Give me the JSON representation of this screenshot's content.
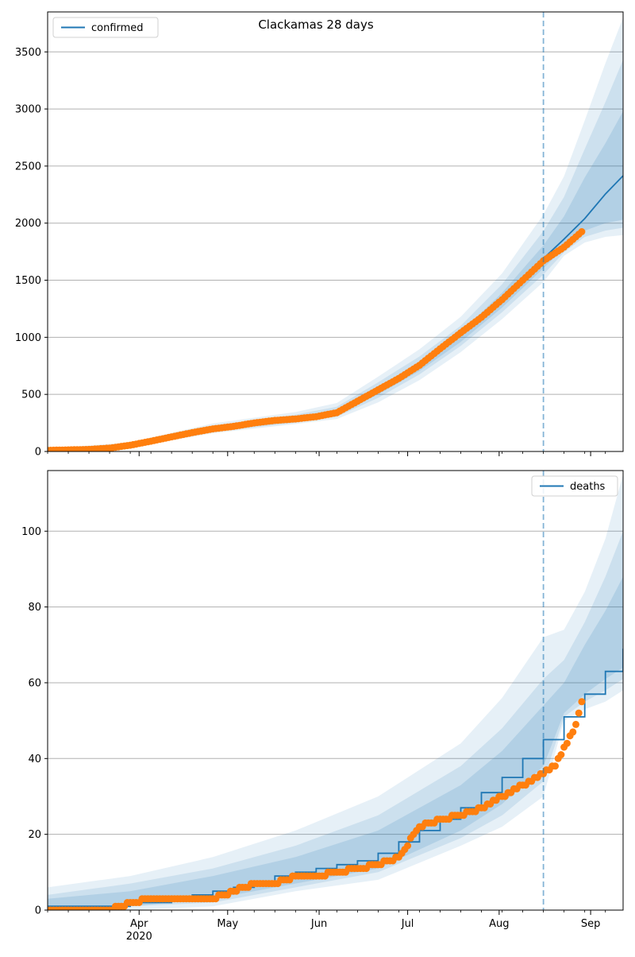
{
  "figure": {
    "title": "Clackamas 28 days",
    "x_tick_labels": [
      "Apr",
      "May",
      "Jun",
      "Jul",
      "Aug",
      "Sep"
    ],
    "x_year_label": "2020"
  },
  "colors": {
    "model_line": "#1f77b4",
    "observed_points": "#ff7f0e",
    "bands": "#1f77b4",
    "forecast_marker": "#1f77b4",
    "grid": "#b0b0b0"
  },
  "chart_data": [
    {
      "type": "line",
      "legend": [
        "confirmed"
      ],
      "legend_position": "top-left",
      "grid": "horizontal",
      "x_start": "2020-03-01",
      "x_end": "2020-09-12",
      "forecast_start": "2020-08-16",
      "ylim": [
        0,
        3850
      ],
      "yticks": [
        0,
        500,
        1000,
        1500,
        2000,
        2500,
        3000,
        3500
      ],
      "series": [
        {
          "name": "confirmed",
          "style": "line",
          "x": [
            "2020-03-01",
            "2020-03-15",
            "2020-03-22",
            "2020-03-29",
            "2020-04-05",
            "2020-04-12",
            "2020-04-19",
            "2020-04-26",
            "2020-05-03",
            "2020-05-10",
            "2020-05-17",
            "2020-05-24",
            "2020-05-31",
            "2020-06-07",
            "2020-06-14",
            "2020-06-21",
            "2020-06-28",
            "2020-07-05",
            "2020-07-12",
            "2020-07-19",
            "2020-07-26",
            "2020-08-02",
            "2020-08-09",
            "2020-08-16",
            "2020-08-23",
            "2020-08-30",
            "2020-09-06",
            "2020-09-12"
          ],
          "y": [
            10,
            18,
            30,
            55,
            90,
            125,
            160,
            195,
            220,
            248,
            268,
            283,
            305,
            345,
            420,
            530,
            630,
            740,
            880,
            1015,
            1160,
            1320,
            1495,
            1690,
            1860,
            2040,
            2255,
            2415
          ]
        }
      ],
      "observed": {
        "x": [
          "2020-03-01",
          "2020-03-15",
          "2020-03-22",
          "2020-03-29",
          "2020-04-05",
          "2020-04-12",
          "2020-04-19",
          "2020-04-26",
          "2020-05-03",
          "2020-05-10",
          "2020-05-17",
          "2020-05-24",
          "2020-05-31",
          "2020-06-07",
          "2020-06-14",
          "2020-06-21",
          "2020-06-28",
          "2020-07-05",
          "2020-07-12",
          "2020-07-19",
          "2020-07-26",
          "2020-08-02",
          "2020-08-09",
          "2020-08-16",
          "2020-08-23",
          "2020-08-29"
        ],
        "y": [
          10,
          18,
          30,
          55,
          90,
          128,
          165,
          198,
          220,
          250,
          272,
          285,
          305,
          340,
          440,
          540,
          640,
          755,
          900,
          1040,
          1175,
          1330,
          1500,
          1670,
          1790,
          1925
        ]
      },
      "bands": {
        "x": [
          "2020-03-01",
          "2020-03-29",
          "2020-04-26",
          "2020-05-24",
          "2020-06-07",
          "2020-06-21",
          "2020-07-05",
          "2020-07-19",
          "2020-08-02",
          "2020-08-16",
          "2020-08-23",
          "2020-08-30",
          "2020-09-06",
          "2020-09-12"
        ],
        "levels": [
          {
            "lower": [
              0,
              35,
              160,
              240,
              285,
              430,
              625,
              870,
              1160,
              1485,
              1715,
              1830,
              1880,
              1895
            ],
            "upper": [
              25,
              80,
              245,
              345,
              425,
              655,
              895,
              1180,
              1560,
              2075,
              2410,
              2900,
              3400,
              3800
            ]
          },
          {
            "lower": [
              3,
              42,
              172,
              253,
              305,
              470,
              675,
              925,
              1220,
              1550,
              1745,
              1880,
              1935,
              1960
            ],
            "upper": [
              20,
              72,
              228,
              322,
              392,
              606,
              832,
              1102,
              1465,
              1930,
              2230,
              2650,
              3060,
              3430
            ]
          },
          {
            "lower": [
              6,
              48,
              180,
              262,
              320,
              500,
              705,
              960,
              1260,
              1605,
              1785,
              1935,
              2000,
              2030
            ],
            "upper": [
              16,
              65,
              212,
              302,
              365,
              565,
              780,
              1045,
              1390,
              1805,
              2060,
              2400,
              2700,
              2980
            ]
          }
        ]
      }
    },
    {
      "type": "line",
      "legend": [
        "deaths"
      ],
      "legend_position": "top-right",
      "grid": "horizontal",
      "x_start": "2020-03-01",
      "x_end": "2020-09-12",
      "forecast_start": "2020-08-16",
      "ylim": [
        0,
        116
      ],
      "yticks": [
        0,
        20,
        40,
        60,
        80,
        100
      ],
      "series": [
        {
          "name": "deaths",
          "style": "step",
          "x": [
            "2020-03-01",
            "2020-03-15",
            "2020-03-29",
            "2020-04-12",
            "2020-04-19",
            "2020-04-26",
            "2020-05-03",
            "2020-05-10",
            "2020-05-17",
            "2020-05-24",
            "2020-05-31",
            "2020-06-07",
            "2020-06-14",
            "2020-06-21",
            "2020-06-28",
            "2020-07-05",
            "2020-07-12",
            "2020-07-19",
            "2020-07-26",
            "2020-08-02",
            "2020-08-09",
            "2020-08-16",
            "2020-08-23",
            "2020-08-30",
            "2020-09-06",
            "2020-09-12"
          ],
          "y": [
            1,
            1,
            2,
            3,
            4,
            5,
            6,
            7,
            9,
            10,
            11,
            12,
            13,
            15,
            18,
            21,
            24,
            27,
            31,
            35,
            40,
            45,
            51,
            57,
            63,
            69
          ]
        }
      ],
      "observed": {
        "x": [
          "2020-03-01",
          "2020-03-15",
          "2020-03-22",
          "2020-03-29",
          "2020-04-05",
          "2020-04-12",
          "2020-04-19",
          "2020-04-26",
          "2020-05-03",
          "2020-05-10",
          "2020-05-17",
          "2020-05-24",
          "2020-05-31",
          "2020-06-07",
          "2020-06-14",
          "2020-06-21",
          "2020-06-28",
          "2020-07-05",
          "2020-07-12",
          "2020-07-19",
          "2020-07-26",
          "2020-08-02",
          "2020-08-09",
          "2020-08-16",
          "2020-08-20",
          "2020-08-27",
          "2020-08-29"
        ],
        "y": [
          0,
          0,
          0,
          2,
          3,
          3,
          3,
          3,
          5,
          7,
          7,
          9,
          9,
          10,
          11,
          12,
          14,
          22,
          24,
          25,
          27,
          30,
          33,
          36,
          38,
          49,
          55
        ]
      },
      "bands": {
        "x": [
          "2020-03-01",
          "2020-03-29",
          "2020-04-26",
          "2020-05-24",
          "2020-06-21",
          "2020-07-19",
          "2020-08-02",
          "2020-08-16",
          "2020-08-23",
          "2020-08-30",
          "2020-09-06",
          "2020-09-12"
        ],
        "levels": [
          {
            "lower": [
              0,
              0,
              1,
              5,
              8,
              17,
              22,
              30,
              50,
              53,
              55,
              58
            ],
            "upper": [
              6,
              9,
              14,
              21,
              30,
              44,
              56,
              72,
              74,
              84,
              98,
              115
            ]
          },
          {
            "lower": [
              0,
              1,
              2,
              6,
              10,
              19,
              25,
              34,
              51,
              55,
              58,
              61
            ],
            "upper": [
              4,
              7,
              11,
              17,
              25,
              38,
              48,
              61,
              66,
              76,
              88,
              100
            ]
          },
          {
            "lower": [
              0,
              1,
              3,
              7,
              11,
              21,
              28,
              38,
              52,
              57,
              61,
              64
            ],
            "upper": [
              3,
              5,
              9,
              14,
              21,
              33,
              42,
              54,
              60,
              70,
              79,
              88
            ]
          }
        ]
      }
    }
  ]
}
